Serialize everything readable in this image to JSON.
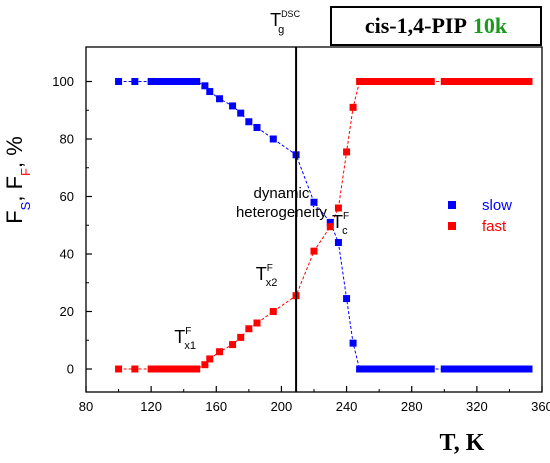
{
  "title": {
    "main": "cis-1,4-PIP",
    "accent": "10k",
    "accent_color": "#1a9a1a"
  },
  "chart_data": {
    "type": "scatter",
    "xlabel": "T, K",
    "ylabel": {
      "parts": [
        {
          "text": "F",
          "color": "#000000",
          "sub": false
        },
        {
          "text": "S",
          "color": "#0000ff",
          "sub": true
        },
        {
          "text": ", F",
          "color": "#000000",
          "sub": false
        },
        {
          "text": "F",
          "color": "#ff0000",
          "sub": true
        },
        {
          "text": ", %",
          "color": "#000000",
          "sub": false
        }
      ]
    },
    "xlim": [
      80,
      360
    ],
    "ylim": [
      -8,
      112
    ],
    "xticks": [
      80,
      120,
      160,
      200,
      240,
      280,
      320,
      360
    ],
    "xtick_labels": [
      "80",
      "120",
      "160",
      "200",
      "240",
      "280",
      "320",
      "360"
    ],
    "yticks": [
      0,
      20,
      40,
      60,
      80,
      100
    ],
    "ytick_labels": [
      "0",
      "20",
      "40",
      "60",
      "80",
      "100"
    ],
    "grid": false,
    "legend": {
      "position": "right",
      "entries": [
        "slow",
        "fast"
      ]
    },
    "vline": {
      "x": 209,
      "label": "T",
      "label_sup": "DSC",
      "label_sub": "g"
    },
    "series": [
      {
        "name": "slow",
        "color": "#0000ff",
        "marker": "square",
        "line": "dashed",
        "points": [
          [
            100,
            100
          ],
          [
            110,
            100
          ],
          [
            120,
            100
          ],
          [
            124,
            100
          ],
          [
            128,
            100
          ],
          [
            132,
            100
          ],
          [
            136,
            100
          ],
          [
            140,
            100
          ],
          [
            144,
            100
          ],
          [
            148,
            100
          ],
          [
            153,
            98.5
          ],
          [
            156,
            96.5
          ],
          [
            162,
            94
          ],
          [
            170,
            91.5
          ],
          [
            175,
            89
          ],
          [
            180,
            86
          ],
          [
            185,
            84
          ],
          [
            195,
            80
          ],
          [
            209,
            74.5
          ],
          [
            220,
            58
          ],
          [
            230,
            51
          ],
          [
            235,
            44
          ],
          [
            240,
            24.5
          ],
          [
            244,
            9
          ],
          [
            248,
            0
          ],
          [
            252,
            0
          ],
          [
            256,
            0
          ],
          [
            260,
            0
          ],
          [
            264,
            0
          ],
          [
            268,
            0
          ],
          [
            272,
            0
          ],
          [
            276,
            0
          ],
          [
            280,
            0
          ],
          [
            284,
            0
          ],
          [
            288,
            0
          ],
          [
            292,
            0
          ],
          [
            300,
            0
          ],
          [
            304,
            0
          ],
          [
            308,
            0
          ],
          [
            312,
            0
          ],
          [
            316,
            0
          ],
          [
            320,
            0
          ],
          [
            324,
            0
          ],
          [
            328,
            0
          ],
          [
            332,
            0
          ],
          [
            336,
            0
          ],
          [
            340,
            0
          ],
          [
            344,
            0
          ],
          [
            348,
            0
          ],
          [
            352,
            0
          ]
        ]
      },
      {
        "name": "fast",
        "color": "#ff0000",
        "marker": "square",
        "line": "dashed",
        "points": [
          [
            100,
            0
          ],
          [
            110,
            0
          ],
          [
            120,
            0
          ],
          [
            124,
            0
          ],
          [
            128,
            0
          ],
          [
            132,
            0
          ],
          [
            136,
            0
          ],
          [
            140,
            0
          ],
          [
            144,
            0
          ],
          [
            148,
            0
          ],
          [
            153,
            1.5
          ],
          [
            156,
            3.5
          ],
          [
            162,
            6
          ],
          [
            170,
            8.5
          ],
          [
            175,
            11
          ],
          [
            180,
            14
          ],
          [
            185,
            16
          ],
          [
            195,
            20
          ],
          [
            209,
            25.5
          ],
          [
            220,
            41
          ],
          [
            230,
            49.5
          ],
          [
            235,
            56
          ],
          [
            240,
            75.5
          ],
          [
            244,
            91
          ],
          [
            248,
            100
          ],
          [
            252,
            100
          ],
          [
            256,
            100
          ],
          [
            260,
            100
          ],
          [
            264,
            100
          ],
          [
            268,
            100
          ],
          [
            272,
            100
          ],
          [
            276,
            100
          ],
          [
            280,
            100
          ],
          [
            284,
            100
          ],
          [
            288,
            100
          ],
          [
            292,
            100
          ],
          [
            300,
            100
          ],
          [
            304,
            100
          ],
          [
            308,
            100
          ],
          [
            312,
            100
          ],
          [
            316,
            100
          ],
          [
            320,
            100
          ],
          [
            324,
            100
          ],
          [
            328,
            100
          ],
          [
            332,
            100
          ],
          [
            336,
            100
          ],
          [
            340,
            100
          ],
          [
            344,
            100
          ],
          [
            348,
            100
          ],
          [
            352,
            100
          ]
        ]
      }
    ],
    "annotations": [
      {
        "lines": [
          "dynamic",
          "heterogeneity"
        ],
        "x": 200,
        "y": 56
      },
      {
        "base": "T",
        "sup": "F",
        "sub": "x1",
        "x": 150,
        "y": 9
      },
      {
        "base": "T",
        "sup": "F",
        "sub": "x2",
        "x": 200,
        "y": 31
      },
      {
        "base": "T",
        "sup": "F",
        "sub": "c",
        "x": 244,
        "y": 49
      }
    ]
  }
}
